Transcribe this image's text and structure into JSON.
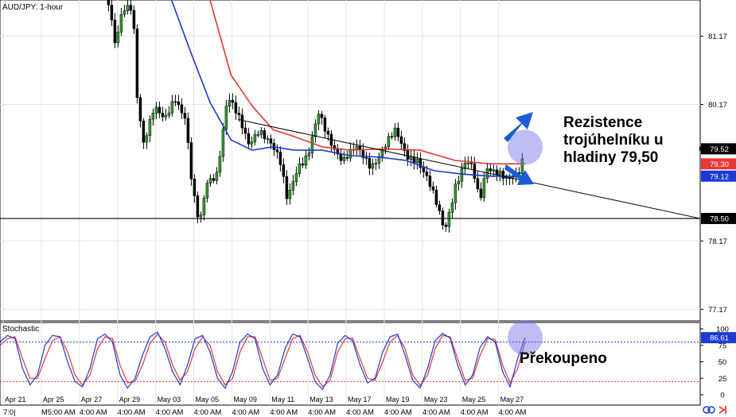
{
  "chart_data": {
    "type": "candlestick",
    "symbol_label": "AUD/JPY: 1-hour",
    "oscillator_label": "Stochastic",
    "price_axis": {
      "ticks": [
        "81.17",
        "80.17",
        "78.17",
        "77.17"
      ],
      "ylim": [
        77.0,
        81.7
      ]
    },
    "osc_axis": {
      "ticks": [
        "100",
        "75",
        "50",
        "25",
        "0"
      ],
      "ylim": [
        0,
        100
      ]
    },
    "price_badges": [
      {
        "id": "last",
        "value": "79.52",
        "bg": "#000000",
        "fg": "#ffffff"
      },
      {
        "id": "ma_red",
        "value": "79.30",
        "bg": "#e53935",
        "fg": "#ffffff"
      },
      {
        "id": "ma_blue",
        "value": "79.12",
        "bg": "#1e3ad6",
        "fg": "#ffffff"
      },
      {
        "id": "support",
        "value": "78.50",
        "bg": "#000000",
        "fg": "#ffffff"
      }
    ],
    "osc_badge": {
      "value": "86.61",
      "bg": "#1e3ad6",
      "fg": "#ffffff"
    },
    "date_labels": [
      "Apr 21",
      "Apr 25",
      "Apr 27",
      "Apr 29",
      "May 03",
      "May 05",
      "May 09",
      "May 11",
      "May 13",
      "May 17",
      "May 19",
      "May 23",
      "May 25",
      "May 27"
    ],
    "time_labels": [
      "7:0|",
      "M5:00 AM",
      "4:00 AM",
      "4:00 AM",
      "4:00 AM",
      "4:00 AM",
      "4:00 AM",
      "4:00 AM",
      "4:00 AM",
      "4:00 AM",
      "4:00 AM",
      "4:00 AM",
      "4:00 AM",
      "4:00 AM"
    ],
    "support_level": 78.5,
    "trendline": {
      "x_start": 0.34,
      "y_start": 79.95,
      "x_end": 1.0,
      "y_end": 78.5
    },
    "price_path": [
      [
        0.155,
        81.7
      ],
      [
        0.165,
        81.0
      ],
      [
        0.175,
        81.5
      ],
      [
        0.19,
        81.6
      ],
      [
        0.195,
        80.4
      ],
      [
        0.205,
        79.65
      ],
      [
        0.22,
        80.1
      ],
      [
        0.235,
        79.9
      ],
      [
        0.25,
        80.3
      ],
      [
        0.265,
        80.0
      ],
      [
        0.275,
        78.9
      ],
      [
        0.285,
        78.35
      ],
      [
        0.295,
        79.0
      ],
      [
        0.31,
        79.2
      ],
      [
        0.325,
        80.3
      ],
      [
        0.34,
        79.95
      ],
      [
        0.355,
        79.6
      ],
      [
        0.37,
        79.85
      ],
      [
        0.385,
        79.6
      ],
      [
        0.4,
        79.3
      ],
      [
        0.41,
        78.8
      ],
      [
        0.425,
        79.3
      ],
      [
        0.44,
        79.4
      ],
      [
        0.455,
        80.0
      ],
      [
        0.47,
        79.7
      ],
      [
        0.49,
        79.35
      ],
      [
        0.51,
        79.5
      ],
      [
        0.53,
        79.3
      ],
      [
        0.55,
        79.55
      ],
      [
        0.565,
        79.75
      ],
      [
        0.58,
        79.45
      ],
      [
        0.595,
        79.4
      ],
      [
        0.61,
        79.05
      ],
      [
        0.625,
        78.65
      ],
      [
        0.635,
        78.35
      ],
      [
        0.65,
        79.0
      ],
      [
        0.665,
        79.3
      ],
      [
        0.675,
        79.2
      ],
      [
        0.685,
        78.75
      ],
      [
        0.695,
        79.3
      ],
      [
        0.71,
        79.2
      ],
      [
        0.725,
        79.0
      ],
      [
        0.74,
        79.15
      ],
      [
        0.75,
        79.52
      ]
    ],
    "series": [
      {
        "name": "",
        "color": "#e53935",
        "role": "moving-average",
        "points": [
          [
            0.3,
            81.7
          ],
          [
            0.33,
            80.6
          ],
          [
            0.36,
            80.15
          ],
          [
            0.39,
            79.8
          ],
          [
            0.42,
            79.7
          ],
          [
            0.46,
            79.55
          ],
          [
            0.5,
            79.5
          ],
          [
            0.55,
            79.52
          ],
          [
            0.6,
            79.5
          ],
          [
            0.65,
            79.35
          ],
          [
            0.7,
            79.3
          ],
          [
            0.75,
            79.3
          ]
        ]
      },
      {
        "name": "",
        "color": "#1e3ad6",
        "role": "moving-average",
        "points": [
          [
            0.245,
            81.7
          ],
          [
            0.27,
            81.0
          ],
          [
            0.3,
            80.2
          ],
          [
            0.33,
            79.65
          ],
          [
            0.36,
            79.5
          ],
          [
            0.39,
            79.55
          ],
          [
            0.42,
            79.5
          ],
          [
            0.46,
            79.5
          ],
          [
            0.5,
            79.42
          ],
          [
            0.54,
            79.4
          ],
          [
            0.58,
            79.35
          ],
          [
            0.62,
            79.2
          ],
          [
            0.66,
            79.15
          ],
          [
            0.7,
            79.12
          ],
          [
            0.75,
            79.12
          ]
        ]
      }
    ],
    "stochastic_k": [
      80,
      90,
      85,
      40,
      15,
      30,
      75,
      90,
      88,
      50,
      20,
      12,
      40,
      85,
      92,
      80,
      30,
      10,
      25,
      60,
      88,
      95,
      70,
      35,
      15,
      45,
      85,
      90,
      65,
      25,
      10,
      35,
      80,
      92,
      85,
      40,
      15,
      30,
      70,
      92,
      88,
      55,
      20,
      8,
      30,
      78,
      90,
      82,
      45,
      18,
      25,
      65,
      88,
      92,
      60,
      22,
      10,
      40,
      82,
      93,
      86,
      45,
      15,
      30,
      72,
      88,
      80,
      35,
      12,
      55,
      87
    ],
    "stochastic_d": [
      75,
      85,
      88,
      55,
      25,
      25,
      55,
      82,
      88,
      65,
      30,
      15,
      30,
      70,
      88,
      85,
      45,
      18,
      20,
      45,
      78,
      92,
      80,
      45,
      22,
      35,
      70,
      88,
      75,
      35,
      15,
      25,
      65,
      88,
      88,
      55,
      22,
      25,
      55,
      85,
      90,
      65,
      30,
      12,
      22,
      65,
      85,
      86,
      55,
      25,
      22,
      50,
      80,
      90,
      70,
      30,
      14,
      30,
      70,
      90,
      88,
      55,
      22,
      25,
      60,
      85,
      84,
      45,
      18,
      40,
      80
    ],
    "osc_levels": {
      "overbought": 80,
      "oversold": 20
    },
    "highlight_points": [
      {
        "panel": "price",
        "x": 0.75,
        "y": 79.52
      },
      {
        "panel": "oscillator",
        "x": 0.75,
        "y": 86.61
      }
    ]
  },
  "annotations": {
    "resistance_line1": "Rezistence",
    "resistance_line2": "trojúhelníku u",
    "resistance_line3": "hladiny 79,50",
    "overbought": "Překoupeno"
  }
}
